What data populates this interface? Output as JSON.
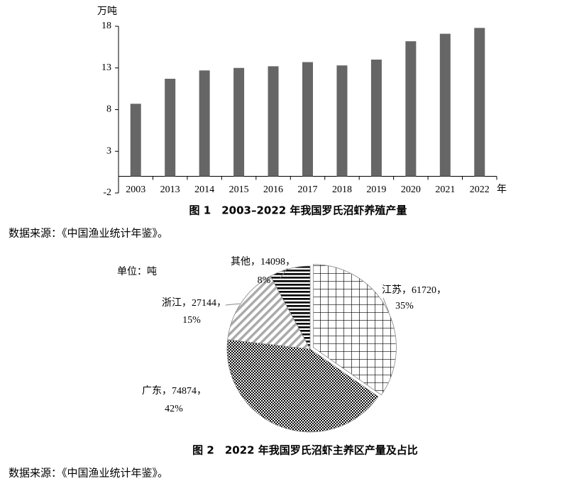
{
  "chart_data": [
    {
      "type": "bar",
      "title": "图 1　2003–2022 年我国罗氏沼虾养殖产量",
      "y_label": "万吨",
      "x_label": "年",
      "categories": [
        "2003",
        "2013",
        "2014",
        "2015",
        "2016",
        "2017",
        "2018",
        "2019",
        "2020",
        "2021",
        "2022"
      ],
      "values": [
        8.7,
        11.7,
        12.7,
        13.0,
        13.2,
        13.7,
        13.3,
        14.0,
        16.2,
        17.1,
        17.8
      ],
      "color": "#666666",
      "ylim": [
        -2,
        18
      ],
      "yticks": [
        -2,
        3,
        8,
        13,
        18
      ]
    },
    {
      "type": "pie",
      "title": "图 2　2022 年我国罗氏沼虾主养区产量及占比",
      "unit_label": "单位：吨",
      "categories": [
        "江苏",
        "广东",
        "浙江",
        "其他"
      ],
      "values": [
        61720,
        74874,
        27144,
        14098
      ],
      "shares": [
        {
          "value": 35,
          "label": "35%"
        },
        {
          "value": 42,
          "label": "42%"
        },
        {
          "value": 15,
          "label": "15%"
        },
        {
          "value": 8,
          "label": "8%"
        }
      ],
      "separator": "，"
    }
  ],
  "sources": [
    "数据来源：《中国渔业统计年鉴》。",
    "数据来源：《中国渔业统计年鉴》。"
  ]
}
